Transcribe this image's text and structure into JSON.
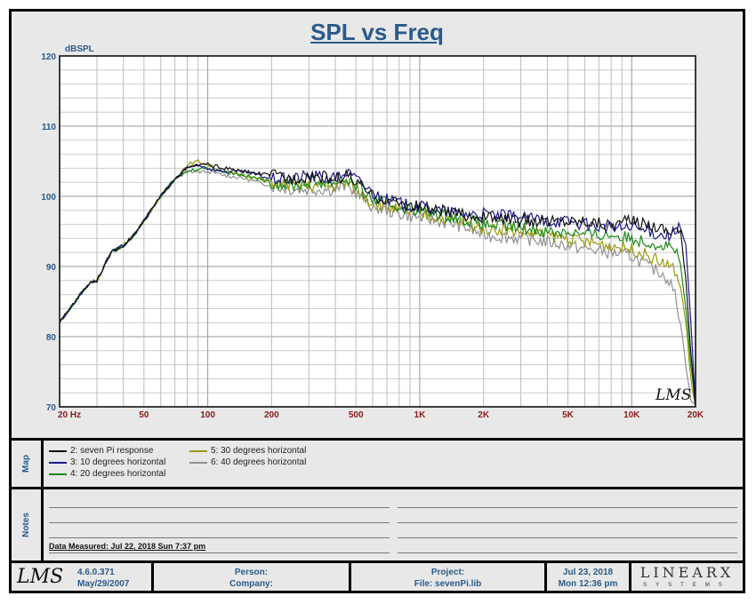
{
  "chart_data": {
    "type": "line",
    "title": "SPL vs Freq",
    "ylabel": "dBSPL",
    "xlabel": "",
    "xscale": "log",
    "xlim": [
      20,
      20000
    ],
    "ylim": [
      70,
      120
    ],
    "grid": true,
    "yticks": [
      70,
      80,
      90,
      100,
      110,
      120
    ],
    "xticks": [
      {
        "v": 20,
        "l": "20  Hz"
      },
      {
        "v": 50,
        "l": "50"
      },
      {
        "v": 100,
        "l": "100"
      },
      {
        "v": 200,
        "l": "200"
      },
      {
        "v": 500,
        "l": "500"
      },
      {
        "v": 1000,
        "l": "1K"
      },
      {
        "v": 2000,
        "l": "2K"
      },
      {
        "v": 5000,
        "l": "5K"
      },
      {
        "v": 10000,
        "l": "10K"
      },
      {
        "v": 20000,
        "l": "20K"
      }
    ],
    "x": [
      20,
      23,
      25,
      28,
      30,
      33,
      35,
      40,
      45,
      50,
      60,
      70,
      80,
      90,
      100,
      120,
      150,
      200,
      250,
      300,
      400,
      450,
      500,
      600,
      700,
      800,
      1000,
      1500,
      2000,
      3000,
      4000,
      5000,
      6000,
      8000,
      10000,
      12000,
      14000,
      15000,
      16000,
      17000,
      18000,
      19000,
      20000
    ],
    "series": [
      {
        "name": "2: seven Pi response",
        "color": "#111111",
        "values": [
          82,
          84.5,
          86,
          87.8,
          88,
          90.5,
          92,
          93,
          94.5,
          96.5,
          100,
          102.5,
          104,
          104.5,
          104.5,
          104,
          103.5,
          103,
          102.5,
          103,
          102.5,
          103,
          102,
          100,
          99.5,
          99,
          98.5,
          97.5,
          97,
          96.5,
          96.5,
          96.5,
          96.5,
          96,
          96.5,
          96,
          95.5,
          95,
          95.5,
          95,
          88,
          78,
          70
        ]
      },
      {
        "name": "3: 10 degrees horizontal",
        "color": "#1a1a8c",
        "values": [
          82,
          84.5,
          86,
          87.8,
          88,
          90.5,
          92,
          93,
          94.5,
          96.5,
          100,
          102.5,
          104,
          104.5,
          104,
          103.5,
          103.5,
          102.5,
          102.5,
          103,
          102.5,
          103.5,
          102.5,
          100.5,
          99.5,
          99,
          98.5,
          97.5,
          97.5,
          97,
          96.5,
          96.5,
          96,
          95.5,
          95.5,
          95,
          94.5,
          94.5,
          95,
          95.5,
          93,
          82,
          70
        ]
      },
      {
        "name": "4: 20 degrees horizontal",
        "color": "#1a8a1a",
        "values": [
          82,
          84.5,
          86,
          87.8,
          88,
          90.5,
          92,
          93,
          94.5,
          96.5,
          100,
          102.5,
          103.5,
          104,
          104,
          103.5,
          103,
          102,
          101.5,
          102,
          102,
          102.5,
          101.5,
          99.5,
          99,
          98.5,
          98,
          97,
          96,
          95.5,
          95,
          95,
          94.5,
          94.5,
          94,
          93.5,
          93,
          93,
          92.5,
          90,
          84,
          76,
          70
        ]
      },
      {
        "name": "5: 30 degrees horizontal",
        "color": "#9a9a10",
        "values": [
          82,
          84.5,
          86,
          87.8,
          88,
          90.5,
          92,
          93,
          94.5,
          96.5,
          100,
          102.5,
          104.5,
          105,
          104.5,
          103.5,
          103,
          102,
          101.5,
          101.5,
          101.5,
          102,
          101,
          99,
          98.5,
          98,
          97.5,
          96.5,
          95.5,
          95,
          94.5,
          94,
          93.5,
          93,
          92.5,
          91.5,
          90.5,
          90,
          89.5,
          87,
          82,
          74,
          70
        ]
      },
      {
        "name": "6: 40 degrees horizontal",
        "color": "#909090",
        "values": [
          82,
          84.5,
          86,
          87.8,
          88,
          90.5,
          92,
          93,
          94.5,
          96.5,
          100,
          102.5,
          103.5,
          103.5,
          103.5,
          103,
          102.5,
          101.5,
          101,
          101,
          101,
          101.5,
          100.5,
          98.5,
          98,
          97.5,
          97,
          96,
          94.5,
          94,
          93.5,
          93,
          92.5,
          92,
          91.5,
          90,
          89,
          88,
          86,
          82,
          76,
          71,
          70
        ]
      }
    ]
  },
  "watermark": "LMS",
  "map_label": "Map",
  "notes_label": "Notes",
  "data_measured": "Data Measured: Jul 22, 2018  Sun  7:37 pm",
  "footer": {
    "logo": "LMS",
    "version": "4.6.0.371",
    "version_date": "May/29/2007",
    "person": "Person:",
    "company": "Company:",
    "project": "Project:",
    "file": "File: sevenPi.lib",
    "date": "Jul 23, 2018",
    "time": "Mon 12:36 pm",
    "brand": "LINEARX",
    "brand_sub": "SYSTEMS"
  }
}
